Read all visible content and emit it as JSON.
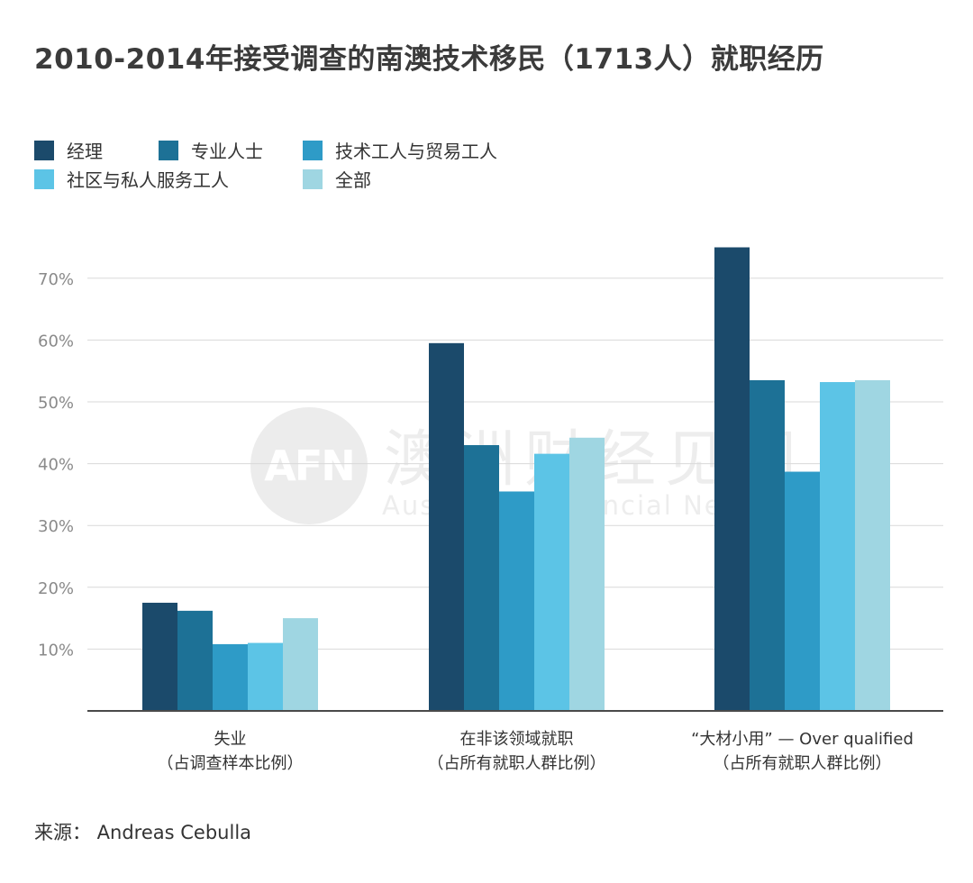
{
  "title": "2010-2014年接受调查的南澳技术移民（1713人）就职经历",
  "watermark": {
    "logo": "AFN",
    "cn": "澳洲财经见闻",
    "en": "Australian Financial News"
  },
  "source": "来源：  Andreas Cebulla",
  "chart_data": {
    "type": "bar",
    "title": "2010-2014年接受调查的南澳技术移民（1713人）就职经历",
    "categories": [
      [
        "失业",
        "（占调查样本比例）"
      ],
      [
        "在非该领域就职",
        "（占所有就职人群比例）"
      ],
      [
        "“大材小用”  — Over qualified",
        "（占所有就职人群比例）"
      ]
    ],
    "series": [
      {
        "name": "经理",
        "color": "#1b4a6b",
        "values": [
          17.5,
          59.5,
          75.0
        ]
      },
      {
        "name": "专业人士",
        "color": "#1d7196",
        "values": [
          16.2,
          43.0,
          53.5
        ]
      },
      {
        "name": "技术工人与贸易工人",
        "color": "#2e9bc7",
        "values": [
          10.8,
          35.5,
          38.7
        ]
      },
      {
        "name": "社区与私人服务工人",
        "color": "#5cc4e6",
        "values": [
          11.0,
          41.6,
          53.2
        ]
      },
      {
        "name": "全部",
        "color": "#9fd6e2",
        "values": [
          15.0,
          44.2,
          53.5
        ]
      }
    ],
    "yticks": [
      10,
      20,
      30,
      40,
      50,
      60,
      70
    ],
    "ytick_labels": [
      "10%",
      "20%",
      "30%",
      "40%",
      "50%",
      "60%",
      "70%"
    ],
    "ylim": [
      0,
      75
    ],
    "xlabel": "",
    "ylabel": "",
    "grid": true,
    "legend_position": "top-left"
  }
}
